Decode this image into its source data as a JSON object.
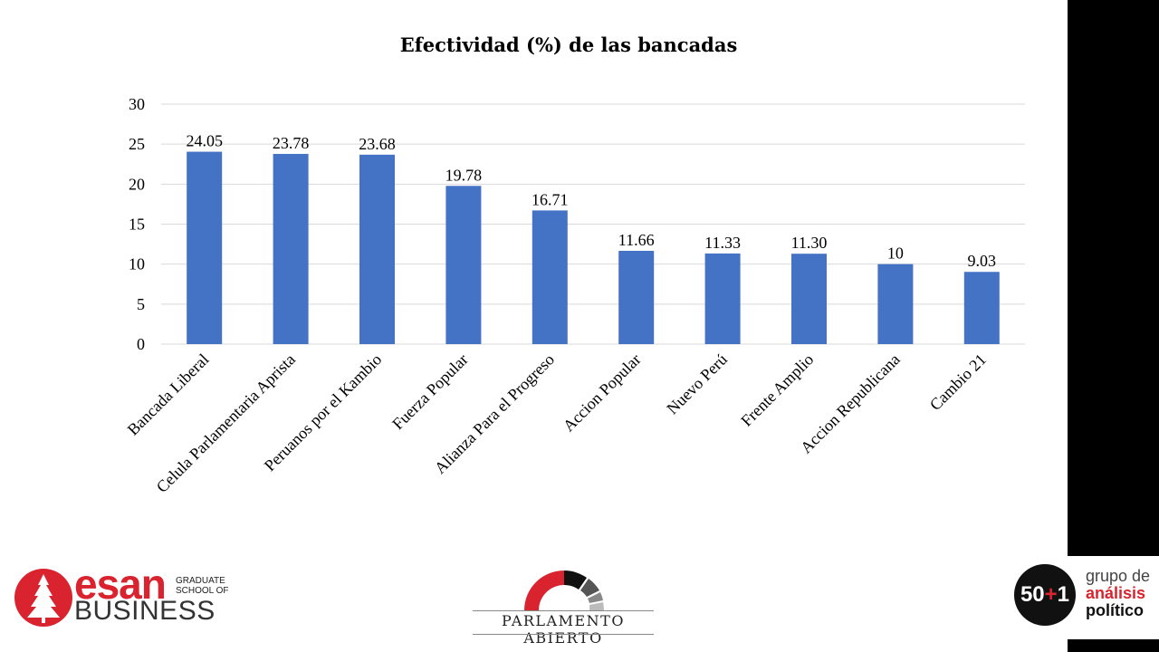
{
  "chart_data": {
    "type": "bar",
    "title": "Efectividad (%) de las bancadas",
    "categories": [
      "Bancada Liberal",
      "Celula Parlamentaria Aprista",
      "Peruanos por el Kambio",
      "Fuerza Popular",
      "Alianza Para el Progreso",
      "Accion Popular",
      "Nuevo Perú",
      "Frente Amplio",
      "Accion Republicana",
      "Cambio 21"
    ],
    "values": [
      24.05,
      23.78,
      23.68,
      19.78,
      16.71,
      11.66,
      11.33,
      11.3,
      10,
      9.03
    ],
    "data_labels": [
      "24.05",
      "23.78",
      "23.68",
      "19.78",
      "16.71",
      "11.66",
      "11.33",
      "11.30",
      "10",
      "9.03"
    ],
    "yticks": [
      0,
      5,
      10,
      15,
      20,
      25,
      30
    ],
    "ylim": [
      0,
      30
    ],
    "xlabel": "",
    "ylabel": "",
    "grid": true,
    "bar_color": "#4472c4"
  },
  "logos": {
    "esan": {
      "word": "esan",
      "graduate_line1": "GRADUATE",
      "graduate_line2": "SCHOOL OF",
      "business": "BUSINESS",
      "color": "#d9232e"
    },
    "parlamento": {
      "text": "PARLAMENTO ABIERTO"
    },
    "grupo": {
      "number_left": "50",
      "plus": "+",
      "number_right": "1",
      "line1": "grupo de",
      "line2": "análisis",
      "line3": "político"
    }
  }
}
